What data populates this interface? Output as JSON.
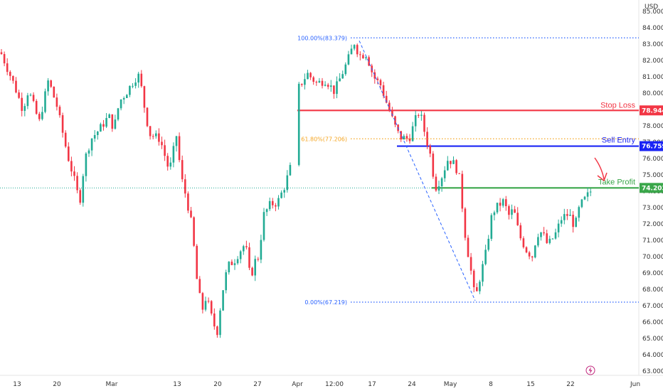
{
  "chart_data": {
    "type": "candlestick",
    "currency": "USD",
    "yticks": [
      "63.000",
      "64.000",
      "65.000",
      "66.000",
      "67.000",
      "68.000",
      "69.000",
      "70.000",
      "71.000",
      "72.000",
      "73.000",
      "74.000",
      "75.000",
      "76.000",
      "77.000",
      "78.000",
      "79.000",
      "80.000",
      "81.000",
      "82.000",
      "83.000",
      "84.000",
      "85.000"
    ],
    "ylim": [
      62.6,
      85.5
    ],
    "xticks": [
      "13",
      "20",
      "Mar",
      "13",
      "20",
      "27",
      "Apr",
      "12:00",
      "17",
      "24",
      "May",
      "8",
      "15",
      "22",
      "Jun"
    ],
    "levels": [
      {
        "name": "Stop Loss",
        "value": "78.944",
        "color": "#f23645"
      },
      {
        "name": "Sell Entry",
        "value": "76.759",
        "color": "#1a24f5"
      },
      {
        "name": "Take Profit",
        "value": "74.203",
        "color": "#3aa64a"
      }
    ],
    "fibonacci": [
      {
        "label": "100.00%(83.379)",
        "value": 83.379
      },
      {
        "label": "61.80%(77.206)",
        "value": 77.206
      },
      {
        "label": "0.00%(67.219)",
        "value": 67.219
      }
    ],
    "last_price": 74.203,
    "swing_path": [
      [
        1,
        82.5
      ],
      [
        20,
        80.5
      ],
      [
        32,
        79.0
      ],
      [
        40,
        80.2
      ],
      [
        55,
        78.2
      ],
      [
        68,
        80.8
      ],
      [
        80,
        79.2
      ],
      [
        95,
        76.2
      ],
      [
        105,
        74.6
      ],
      [
        112,
        73.3
      ],
      [
        119,
        75.9
      ],
      [
        128,
        77.2
      ],
      [
        140,
        77.8
      ],
      [
        153,
        78.6
      ],
      [
        160,
        77.8
      ],
      [
        168,
        79.5
      ],
      [
        177,
        80.0
      ],
      [
        190,
        80.9
      ],
      [
        196,
        81.1
      ],
      [
        202,
        79.4
      ],
      [
        210,
        77.5
      ],
      [
        225,
        77.2
      ],
      [
        238,
        75.2
      ],
      [
        248,
        77.4
      ],
      [
        255,
        74.8
      ],
      [
        262,
        73.6
      ],
      [
        270,
        71.8
      ],
      [
        278,
        68.0
      ],
      [
        285,
        66.8
      ],
      [
        290,
        67.6
      ],
      [
        298,
        66.2
      ],
      [
        305,
        65.3
      ],
      [
        312,
        67.7
      ],
      [
        320,
        69.4
      ],
      [
        330,
        69.8
      ],
      [
        338,
        70.4
      ],
      [
        345,
        70.8
      ],
      [
        352,
        68.6
      ],
      [
        358,
        69.7
      ],
      [
        364,
        70.0
      ],
      [
        370,
        72.5
      ],
      [
        380,
        73.2
      ],
      [
        390,
        73.3
      ],
      [
        400,
        74.3
      ],
      [
        410,
        75.7
      ],
      [
        418,
        80.2
      ],
      [
        432,
        81.2
      ],
      [
        445,
        80.6
      ],
      [
        458,
        80.8
      ],
      [
        470,
        80.1
      ],
      [
        480,
        81.1
      ],
      [
        488,
        81.9
      ],
      [
        498,
        83.1
      ],
      [
        505,
        82.3
      ],
      [
        515,
        82.4
      ],
      [
        525,
        81.0
      ],
      [
        535,
        80.5
      ],
      [
        545,
        79.2
      ],
      [
        555,
        78.0
      ],
      [
        562,
        77.3
      ],
      [
        575,
        77.2
      ],
      [
        585,
        78.5
      ],
      [
        590,
        78.9
      ],
      [
        598,
        77.4
      ],
      [
        605,
        76.2
      ],
      [
        612,
        74.2
      ],
      [
        620,
        74.8
      ],
      [
        630,
        76.0
      ],
      [
        640,
        75.6
      ],
      [
        647,
        74.6
      ],
      [
        652,
        71.9
      ],
      [
        658,
        70.2
      ],
      [
        664,
        68.6
      ],
      [
        668,
        67.3
      ],
      [
        675,
        68.8
      ],
      [
        682,
        70.0
      ],
      [
        692,
        72.7
      ],
      [
        700,
        73.1
      ],
      [
        708,
        73.4
      ],
      [
        715,
        72.5
      ],
      [
        722,
        72.9
      ],
      [
        730,
        71.3
      ],
      [
        740,
        70.4
      ],
      [
        748,
        70.0
      ],
      [
        755,
        71.4
      ],
      [
        762,
        71.5
      ],
      [
        770,
        70.7
      ],
      [
        780,
        71.3
      ],
      [
        790,
        72.4
      ],
      [
        800,
        72.6
      ],
      [
        808,
        71.8
      ],
      [
        815,
        73.1
      ],
      [
        822,
        73.5
      ],
      [
        832,
        74.1
      ]
    ]
  },
  "annotation_icon": "lightning-icon"
}
